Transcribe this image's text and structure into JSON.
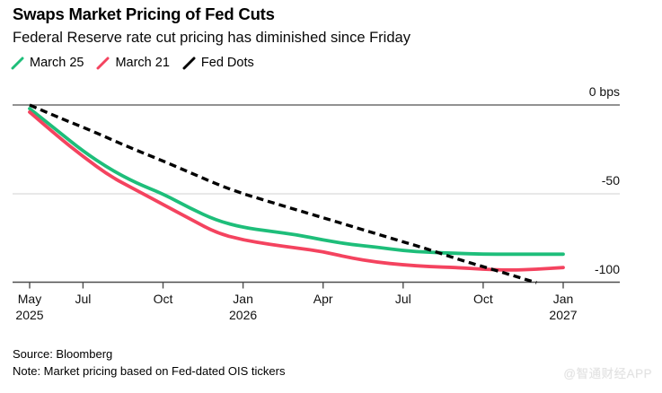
{
  "chart": {
    "title": "Swaps Market Pricing of Fed Cuts",
    "subtitle": "Federal Reserve rate cut pricing has diminished since Friday"
  },
  "chart_data": {
    "type": "line",
    "title": "Swaps Market Pricing of Fed Cuts",
    "subtitle": "Federal Reserve rate cut pricing has diminished since Friday",
    "unit": "bps",
    "ylim": [
      -100,
      0
    ],
    "grid": "horizontal",
    "legend_position": "top-left",
    "x": [
      "May 2025",
      "Jun 2025",
      "Jul 2025",
      "Aug 2025",
      "Sep 2025",
      "Oct 2025",
      "Nov 2025",
      "Dec 2025",
      "Jan 2026",
      "Feb 2026",
      "Mar 2026",
      "Apr 2026",
      "May 2026",
      "Jun 2026",
      "Jul 2026",
      "Aug 2026",
      "Sep 2026",
      "Oct 2026",
      "Nov 2026",
      "Dec 2026",
      "Jan 2027"
    ],
    "series": [
      {
        "name": "March 25",
        "color": "#1ebe7a",
        "style": "solid",
        "values": [
          -2,
          -14,
          -26,
          -36,
          -44,
          -50,
          -58,
          -65,
          -69,
          -71,
          -73,
          -76,
          -78.5,
          -80,
          -82,
          -83,
          -83.5,
          -84,
          -84,
          -84,
          -84
        ]
      },
      {
        "name": "March 21",
        "color": "#f4435f",
        "style": "solid",
        "values": [
          -4,
          -17,
          -29,
          -40,
          -48,
          -56,
          -64,
          -72,
          -76,
          -78.5,
          -80.5,
          -82.5,
          -86,
          -88.5,
          -90,
          -91,
          -91.5,
          -92.5,
          -93,
          -92.5,
          -91.5
        ]
      },
      {
        "name": "Fed Dots",
        "color": "#000000",
        "style": "dashed",
        "values": [
          0,
          -6.5,
          -12.5,
          -19,
          -25.5,
          -31.5,
          -38,
          -44.5,
          -50,
          -54.5,
          -59,
          -63.5,
          -68,
          -72.5,
          -77,
          -81.5,
          -86.5,
          -91,
          -95.5,
          -100,
          null
        ]
      }
    ],
    "y_ticks": [
      {
        "value": 0,
        "label": "0 bps"
      },
      {
        "value": -50,
        "label": "-50"
      },
      {
        "value": -100,
        "label": "-100"
      }
    ],
    "x_ticks": [
      {
        "index": 0,
        "label": "May",
        "year": "2025"
      },
      {
        "index": 2,
        "label": "Jul"
      },
      {
        "index": 5,
        "label": "Oct"
      },
      {
        "index": 8,
        "label": "Jan",
        "year": "2026"
      },
      {
        "index": 11,
        "label": "Apr"
      },
      {
        "index": 14,
        "label": "Jul"
      },
      {
        "index": 17,
        "label": "Oct"
      },
      {
        "index": 20,
        "label": "Jan",
        "year": "2027"
      }
    ]
  },
  "footer": {
    "source": "Source: Bloomberg",
    "note": "Note: Market pricing based on Fed-dated OIS tickers"
  },
  "watermark": "@智通财经APP"
}
